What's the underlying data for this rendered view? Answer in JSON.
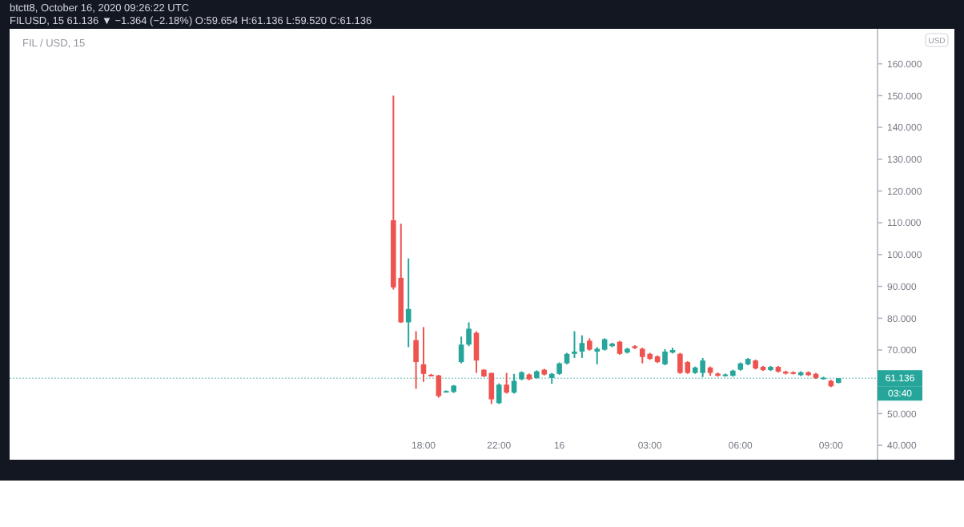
{
  "chart_data": {
    "type": "candlestick",
    "title": "FIL / USD, 15",
    "ylabel": "USD",
    "annotations": [
      "btctt8, October 16, 2020 09:26:22 UTC",
      "FILUSD, 15  61.136 ▼ −1.364 (−2.18%) O:59.654 H:61.136 L:59.520 C:61.136",
      "03:40"
    ],
    "categories": [
      null,
      null,
      null,
      null,
      "18:00",
      null,
      null,
      null,
      null,
      null,
      null,
      null,
      null,
      null,
      "22:00",
      null,
      null,
      null,
      null,
      null,
      null,
      null,
      "16",
      null,
      null,
      null,
      null,
      null,
      null,
      null,
      null,
      null,
      null,
      null,
      "03:00",
      null,
      null,
      null,
      null,
      null,
      null,
      null,
      null,
      null,
      null,
      null,
      "06:00",
      null,
      null,
      null,
      null,
      null,
      null,
      null,
      null,
      null,
      null,
      null,
      "09:00",
      null
    ],
    "ohlc": [
      [
        110.8,
        150,
        89,
        89.7
      ],
      [
        92.7,
        109.7,
        78.5,
        78.7
      ],
      [
        78.7,
        98.8,
        70.9,
        82.9
      ],
      [
        73.1,
        75.9,
        57.8,
        66.2
      ],
      [
        65.5,
        77.2,
        60,
        62.5
      ],
      [
        62.2,
        62.5,
        61.8,
        62
      ],
      [
        62,
        62.2,
        55,
        55.5
      ],
      [
        57,
        57.3,
        56.8,
        57.1
      ],
      [
        56.8,
        59,
        56.5,
        58.8
      ],
      [
        66.2,
        74.2,
        65.8,
        71.7
      ],
      [
        71.7,
        78.7,
        71.2,
        76.7
      ],
      [
        75.4,
        75.9,
        62.8,
        66.7
      ],
      [
        63.8,
        64,
        61.5,
        61.7
      ],
      [
        62.8,
        62.8,
        53,
        54.5
      ],
      [
        53.3,
        59.5,
        53,
        59.1
      ],
      [
        59.1,
        62.8,
        56.3,
        56.6
      ],
      [
        56.6,
        62.5,
        56.3,
        60.3
      ],
      [
        60.8,
        63.3,
        60.5,
        63
      ],
      [
        62.3,
        62.6,
        60.5,
        60.8
      ],
      [
        61.2,
        63.6,
        61,
        63.3
      ],
      [
        63.8,
        64.1,
        62,
        62.3
      ],
      [
        61.2,
        62.8,
        59.4,
        62.5
      ],
      [
        62.5,
        66.1,
        62.2,
        65.8
      ],
      [
        65.8,
        69.1,
        65.5,
        68.8
      ],
      [
        68.8,
        75.9,
        67.5,
        69.5
      ],
      [
        69.5,
        74.6,
        67.5,
        72.2
      ],
      [
        72.9,
        73.7,
        69.8,
        70.1
      ],
      [
        69.5,
        70.9,
        65.5,
        70.4
      ],
      [
        70.1,
        73.7,
        69.8,
        73.4
      ],
      [
        71.2,
        72.3,
        70.9,
        72
      ],
      [
        72.6,
        72.9,
        68.5,
        68.8
      ],
      [
        69.2,
        70.7,
        68.9,
        70.4
      ],
      [
        71.2,
        71.5,
        70.3,
        70.6
      ],
      [
        70.4,
        70.7,
        65.8,
        67.8
      ],
      [
        68.8,
        69.1,
        66.9,
        67.2
      ],
      [
        68,
        68.3,
        65.9,
        66.2
      ],
      [
        65.5,
        70.3,
        65.2,
        69.5
      ],
      [
        69.2,
        70.7,
        68.9,
        70
      ],
      [
        68.8,
        69.1,
        62.5,
        62.8
      ],
      [
        66.2,
        66.5,
        62.5,
        62.8
      ],
      [
        62.8,
        64.8,
        62.5,
        64.5
      ],
      [
        62.8,
        67.5,
        61.5,
        66.7
      ],
      [
        64.5,
        64.8,
        61.9,
        62.8
      ],
      [
        62.6,
        62.9,
        61.6,
        61.9
      ],
      [
        61.9,
        62.6,
        61.6,
        62.3
      ],
      [
        61.9,
        63.8,
        61.6,
        63.5
      ],
      [
        63.8,
        66.1,
        63.5,
        65.8
      ],
      [
        65.5,
        67.5,
        65.2,
        67.2
      ],
      [
        66.7,
        67,
        63.9,
        64.2
      ],
      [
        64.7,
        65,
        63.4,
        63.7
      ],
      [
        63.7,
        65,
        63.4,
        64.7
      ],
      [
        64.7,
        65,
        62.9,
        63.2
      ],
      [
        63.2,
        63.5,
        62.3,
        62.6
      ],
      [
        63,
        63.3,
        62.3,
        62.6
      ],
      [
        62.1,
        63.3,
        61.8,
        63
      ],
      [
        63,
        63.3,
        61.8,
        62.1
      ],
      [
        62.5,
        62.8,
        60.9,
        61.2
      ],
      [
        61,
        61.6,
        60.7,
        61.3
      ],
      [
        60.3,
        60.6,
        58.3,
        58.6
      ],
      [
        59.654,
        61.136,
        59.52,
        61.136
      ]
    ],
    "colors": [
      "#ef5350",
      "#ef5350",
      "#26a69a",
      "#ef5350",
      "#ef5350",
      "#ef5350",
      "#ef5350",
      "#26a69a",
      "#26a69a",
      "#26a69a",
      "#26a69a",
      "#ef5350",
      "#ef5350",
      "#ef5350",
      "#26a69a",
      "#ef5350",
      "#26a69a",
      "#26a69a",
      "#ef5350",
      "#26a69a",
      "#ef5350",
      "#26a69a",
      "#26a69a",
      "#26a69a",
      "#26a69a",
      "#26a69a",
      "#ef5350",
      "#26a69a",
      "#26a69a",
      "#26a69a",
      "#ef5350",
      "#26a69a",
      "#ef5350",
      "#ef5350",
      "#ef5350",
      "#ef5350",
      "#26a69a",
      "#26a69a",
      "#ef5350",
      "#ef5350",
      "#26a69a",
      "#26a69a",
      "#ef5350",
      "#ef5350",
      "#26a69a",
      "#26a69a",
      "#26a69a",
      "#26a69a",
      "#ef5350",
      "#ef5350",
      "#26a69a",
      "#ef5350",
      "#ef5350",
      "#ef5350",
      "#26a69a",
      "#ef5350",
      "#ef5350",
      "#26a69a",
      "#ef5350",
      "#26a69a"
    ],
    "ylim": [
      36,
      171
    ],
    "yticks": [
      {
        "value": 40,
        "label": "40.000"
      },
      {
        "value": 50,
        "label": "50.000"
      },
      {
        "value": 70,
        "label": "70.000"
      },
      {
        "value": 80,
        "label": "80.000"
      },
      {
        "value": 90,
        "label": "90.000"
      },
      {
        "value": 100,
        "label": "100.000"
      },
      {
        "value": 110,
        "label": "110.000"
      },
      {
        "value": 120,
        "label": "120.000"
      },
      {
        "value": 130,
        "label": "130.000"
      },
      {
        "value": 140,
        "label": "140.000"
      },
      {
        "value": 150,
        "label": "150.000"
      },
      {
        "value": 160,
        "label": "160.000"
      }
    ],
    "ref_lines": [
      {
        "axis": "y",
        "value": 61.136,
        "label": "61.136",
        "color": "#26a69a"
      }
    ]
  }
}
